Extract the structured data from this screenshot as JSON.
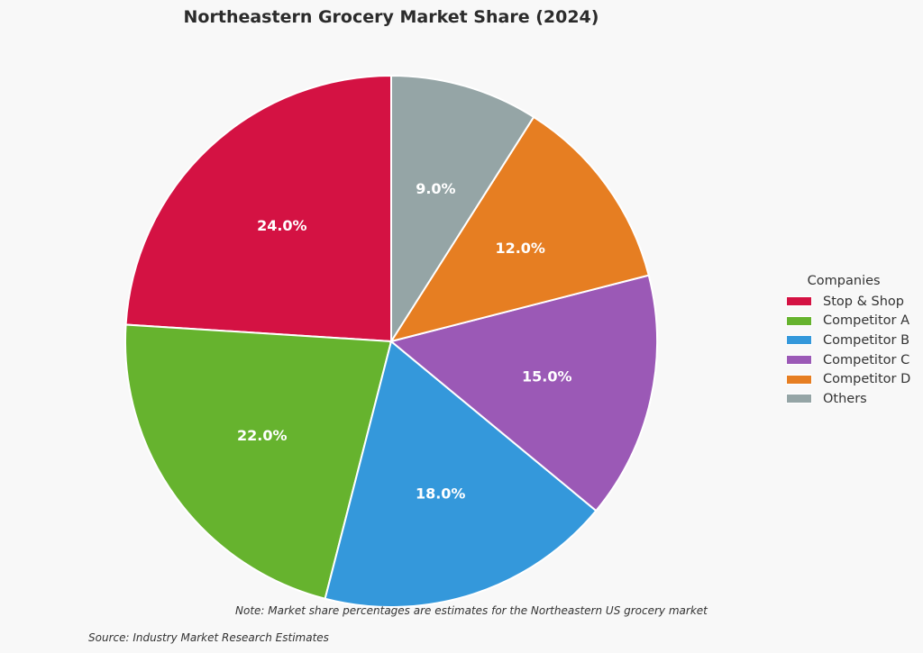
{
  "chart_data": {
    "type": "pie",
    "title": "Northeastern Grocery Market Share (2024)",
    "categories": [
      "Stop & Shop",
      "Competitor A",
      "Competitor B",
      "Competitor C",
      "Competitor D",
      "Others"
    ],
    "values": [
      24.0,
      22.0,
      18.0,
      15.0,
      12.0,
      9.0
    ],
    "labels": [
      "24.0%",
      "22.0%",
      "18.0%",
      "15.0%",
      "12.0%",
      "9.0%"
    ],
    "colors": [
      "#d41243",
      "#66b32e",
      "#3498db",
      "#9b59b6",
      "#e67e22",
      "#95a5a6"
    ],
    "start_angle": 90,
    "direction": "counterclockwise",
    "legend": {
      "title": "Companies",
      "placement": "right"
    },
    "note": "Note: Market share percentages are estimates for the Northeastern US grocery market",
    "source": "Source: Industry Market Research Estimates"
  }
}
